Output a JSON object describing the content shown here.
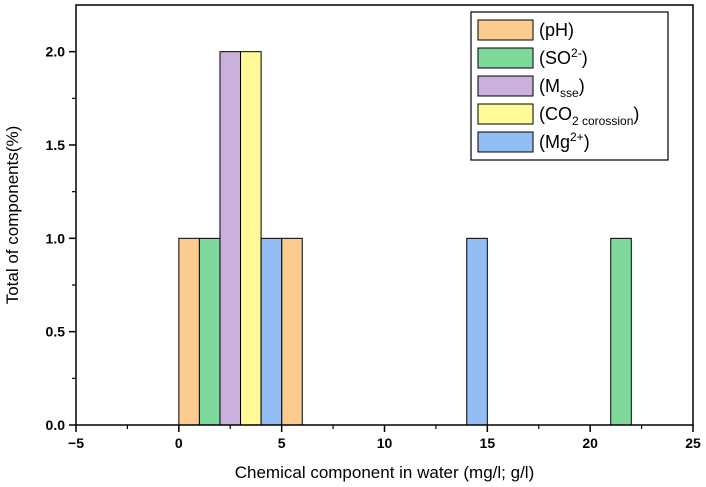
{
  "chart_data": {
    "type": "bar",
    "title": "",
    "xlabel": "Chemical component in water (mg/l; g/l)",
    "ylabel": "Total of components(%)",
    "xlim": [
      -5,
      25
    ],
    "ylim": [
      0,
      2.25
    ],
    "xticks": [
      "−5",
      "0",
      "5",
      "10",
      "15",
      "20",
      "25"
    ],
    "yticks": [
      "0.0",
      "0.5",
      "1.0",
      "1.5",
      "2.0"
    ],
    "xtick_values": [
      -5,
      0,
      5,
      10,
      15,
      20,
      25
    ],
    "ytick_values": [
      0,
      0.5,
      1.0,
      1.5,
      2.0
    ],
    "grid": false,
    "legend_position": "top-right",
    "series": [
      {
        "key": "ph",
        "label_main": "(pH",
        "label_sup": "",
        "label_sub": "",
        "label_tail": ")",
        "color": "#FCCB8F",
        "bins": [
          {
            "x0": 0,
            "x1": 1,
            "value": 1
          },
          {
            "x0": 5,
            "x1": 6,
            "value": 1
          }
        ]
      },
      {
        "key": "so",
        "label_main": "(SO",
        "label_sup": "2-",
        "label_sub": "",
        "label_tail": ")",
        "color": "#7FD99B",
        "bins": [
          {
            "x0": 1,
            "x1": 2,
            "value": 1
          },
          {
            "x0": 21,
            "x1": 22,
            "value": 1
          }
        ]
      },
      {
        "key": "msse",
        "label_main": "(M",
        "label_sup": "",
        "label_sub": "sse",
        "label_tail": ")",
        "color": "#C9B1DB",
        "bins": [
          {
            "x0": 2,
            "x1": 3,
            "value": 2
          }
        ]
      },
      {
        "key": "co2",
        "label_main": "(CO",
        "label_sup": "",
        "label_sub": "2 corossion",
        "label_tail": ")",
        "color": "#FFFA96",
        "bins": [
          {
            "x0": 3,
            "x1": 4,
            "value": 2
          }
        ]
      },
      {
        "key": "mg",
        "label_main": "(Mg",
        "label_sup": "2+",
        "label_sub": "",
        "label_tail": ")",
        "color": "#93BDF5",
        "bins": [
          {
            "x0": 4,
            "x1": 5,
            "value": 1
          },
          {
            "x0": 14,
            "x1": 15,
            "value": 1
          }
        ]
      }
    ]
  }
}
